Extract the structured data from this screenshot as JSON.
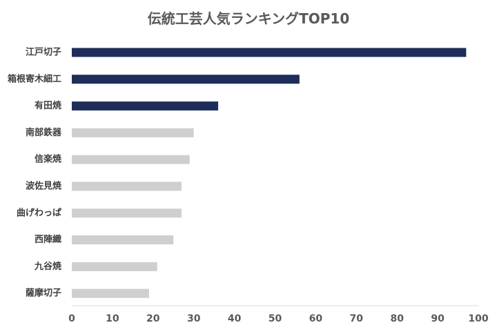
{
  "chart_data": {
    "type": "bar",
    "orientation": "horizontal",
    "title": "伝統工芸人気ランキングTOP10",
    "xlabel": "",
    "ylabel": "",
    "categories": [
      "江戸切子",
      "箱根寄木細工",
      "有田焼",
      "南部鉄器",
      "信楽焼",
      "波佐見焼",
      "曲げわっぱ",
      "西陣織",
      "九谷焼",
      "薩摩切子"
    ],
    "values": [
      97,
      56,
      36,
      30,
      29,
      27,
      27,
      25,
      21,
      19
    ],
    "highlight_count": 3,
    "xlim": [
      0,
      100
    ],
    "x_ticks": [
      "0",
      "10",
      "20",
      "30",
      "40",
      "50",
      "60",
      "70",
      "80",
      "90",
      "100"
    ],
    "grid": false,
    "legend": "none",
    "colors": {
      "highlight": "#1f2d5a",
      "default": "#d0cfcf",
      "title": "#595959",
      "label": "#404040",
      "tick": "#595959",
      "axis": "#d9d9d9"
    }
  }
}
